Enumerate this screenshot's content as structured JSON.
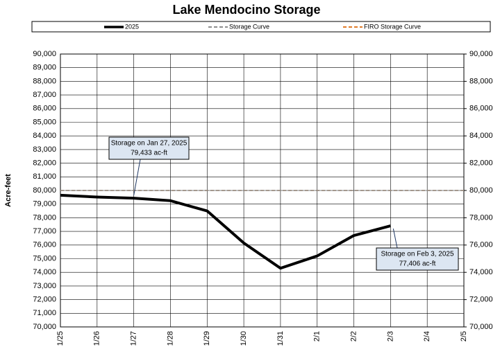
{
  "chart_data": {
    "type": "line",
    "title": "Lake Mendocino Storage",
    "ylabel": "Acre-feet",
    "categories": [
      "1/25",
      "1/26",
      "1/27",
      "1/28",
      "1/29",
      "1/30",
      "1/31",
      "2/1",
      "2/2",
      "2/3",
      "2/4",
      "2/5"
    ],
    "series": [
      {
        "name": "2025",
        "color": "#000000",
        "dash": "solid",
        "values": [
          79650,
          79520,
          79433,
          79250,
          78500,
          76150,
          74300,
          75200,
          76700,
          77406,
          null,
          null
        ]
      },
      {
        "name": "Storage Curve",
        "color": "#8c8c8c",
        "dash": "dashed",
        "values": [
          80000,
          80000,
          80000,
          80000,
          80000,
          80000,
          80000,
          80000,
          80000,
          80000,
          80000,
          80000
        ]
      },
      {
        "name": "FIRO Storage Curve",
        "color": "#e07b28",
        "dash": "dashed",
        "values": [
          80000,
          80000,
          80000,
          80000,
          80000,
          80000,
          80000,
          80000,
          80000,
          80000,
          80000,
          80000
        ]
      }
    ],
    "ylim": [
      70000,
      90000
    ],
    "yticks": [
      {
        "value": 70000,
        "label": "70,000"
      },
      {
        "value": 71000,
        "label": "71,000"
      },
      {
        "value": 72000,
        "label": "72,000"
      },
      {
        "value": 73000,
        "label": "73,000"
      },
      {
        "value": 74000,
        "label": "74,000"
      },
      {
        "value": 75000,
        "label": "75,000"
      },
      {
        "value": 76000,
        "label": "76,000"
      },
      {
        "value": 77000,
        "label": "77,000"
      },
      {
        "value": 78000,
        "label": "78,000"
      },
      {
        "value": 79000,
        "label": "79,000"
      },
      {
        "value": 80000,
        "label": "80,000"
      },
      {
        "value": 81000,
        "label": "81,000"
      },
      {
        "value": 82000,
        "label": "82,000"
      },
      {
        "value": 83000,
        "label": "83,000"
      },
      {
        "value": 84000,
        "label": "84,000"
      },
      {
        "value": 85000,
        "label": "85,000"
      },
      {
        "value": 86000,
        "label": "86,000"
      },
      {
        "value": 87000,
        "label": "87,000"
      },
      {
        "value": 88000,
        "label": "88,000"
      },
      {
        "value": 89000,
        "label": "89,000"
      },
      {
        "value": 90000,
        "label": "90,000"
      }
    ],
    "y2lim": [
      70000,
      90000
    ],
    "y2ticks": [
      {
        "value": 70000,
        "label": "70,000"
      },
      {
        "value": 72000,
        "label": "72,000"
      },
      {
        "value": 74000,
        "label": "74,000"
      },
      {
        "value": 76000,
        "label": "76,000"
      },
      {
        "value": 78000,
        "label": "78,000"
      },
      {
        "value": 80000,
        "label": "80,000"
      },
      {
        "value": 82000,
        "label": "82,000"
      },
      {
        "value": 84000,
        "label": "84,000"
      },
      {
        "value": 86000,
        "label": "86,000"
      },
      {
        "value": 88000,
        "label": "88,000"
      },
      {
        "value": 90000,
        "label": "90,000"
      }
    ],
    "grid": true,
    "annotations": [
      {
        "lines": [
          "Storage on Jan 27, 2025",
          "79,433 ac-ft"
        ]
      },
      {
        "lines": [
          "Storage on Feb 3, 2025",
          "77,406 ac-ft"
        ]
      }
    ]
  }
}
